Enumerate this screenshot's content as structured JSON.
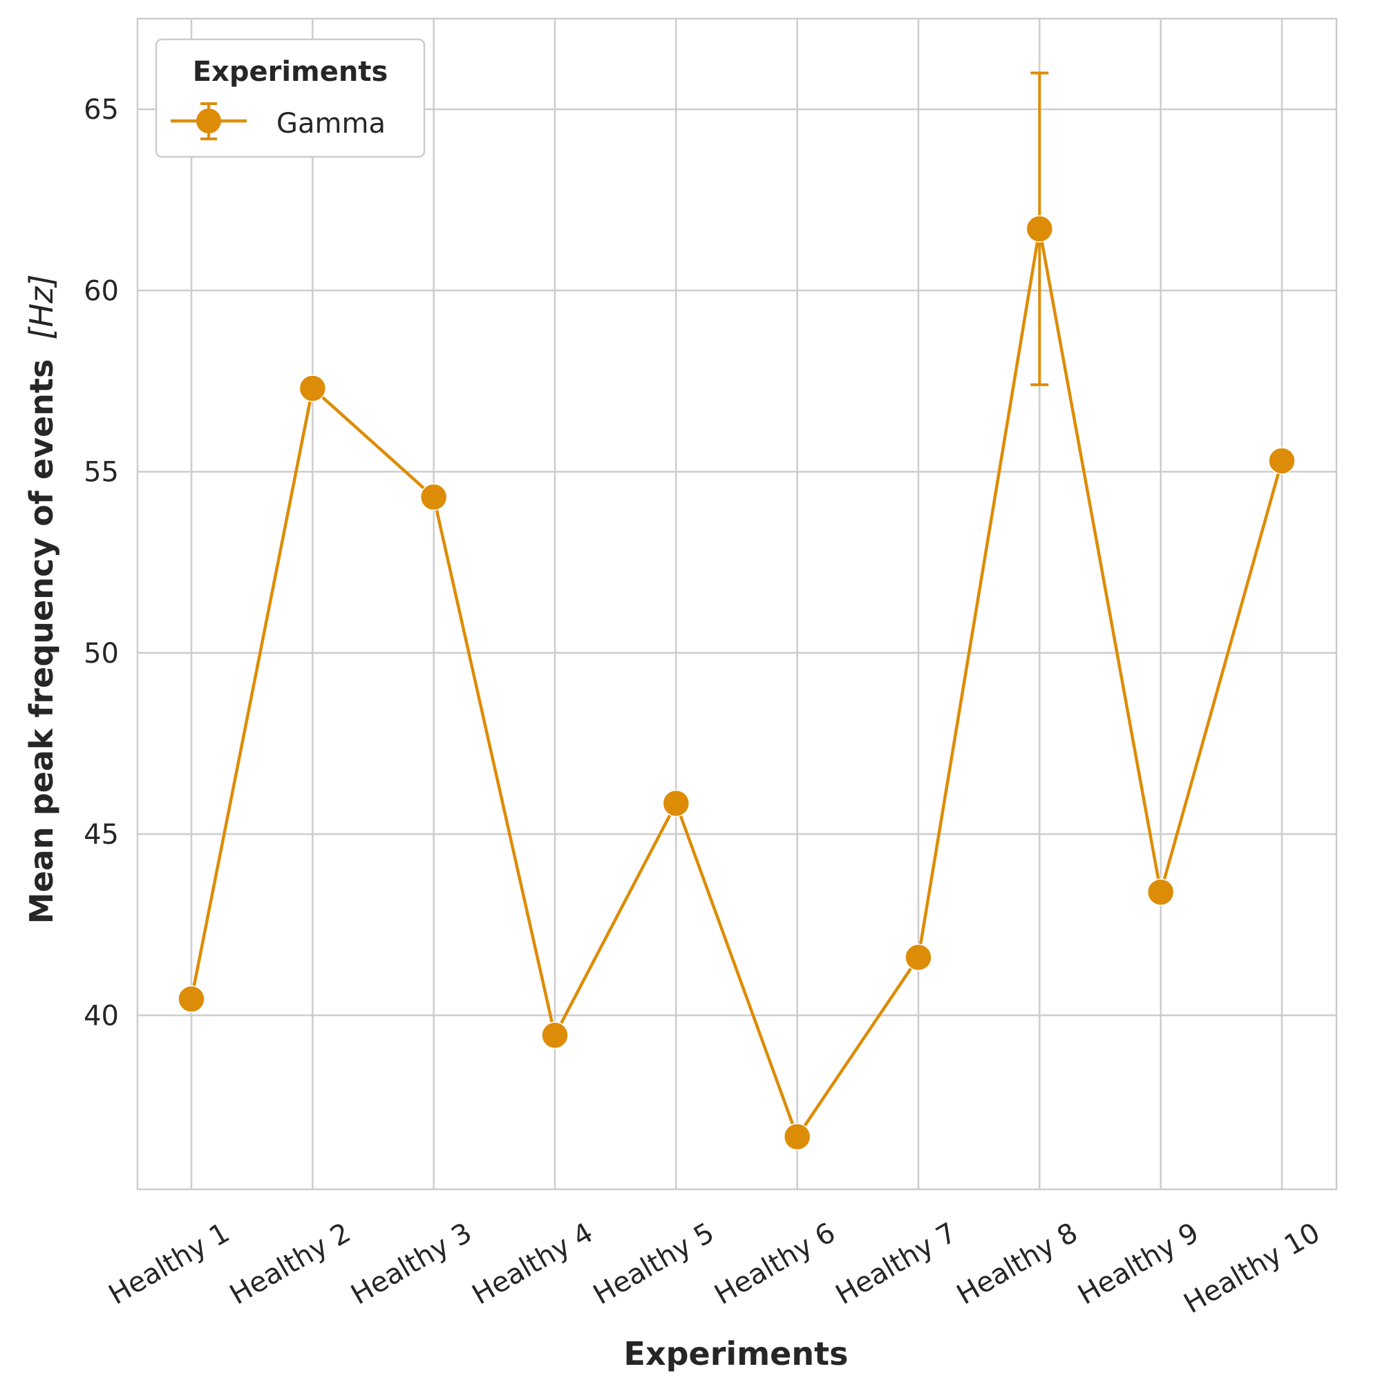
{
  "chart_data": {
    "type": "line",
    "xlabel": "Experiments",
    "ylabel": "Mean peak frequency of events",
    "ylabel_unit": "[Hz]",
    "categories": [
      "Healthy 1",
      "Healthy 2",
      "Healthy 3",
      "Healthy 4",
      "Healthy 5",
      "Healthy 6",
      "Healthy 7",
      "Healthy 8",
      "Healthy 9",
      "Healthy 10"
    ],
    "ylim": [
      35.2,
      67.5
    ],
    "yticks": [
      40,
      45,
      50,
      55,
      60,
      65
    ],
    "grid": true,
    "legend": {
      "title": "Experiments",
      "placement": "top-left"
    },
    "series": [
      {
        "name": "Gamma",
        "color": "#dd8c07",
        "marker": "circle",
        "error_bars": true,
        "values": [
          40.45,
          57.3,
          54.3,
          39.45,
          45.85,
          36.65,
          41.6,
          61.7,
          43.4,
          55.3
        ],
        "errors": [
          null,
          null,
          null,
          null,
          null,
          null,
          null,
          [
            57.4,
            66.0
          ],
          null,
          null
        ]
      }
    ]
  }
}
